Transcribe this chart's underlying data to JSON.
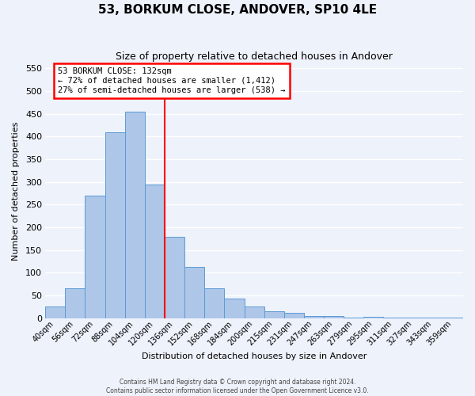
{
  "title": "53, BORKUM CLOSE, ANDOVER, SP10 4LE",
  "subtitle": "Size of property relative to detached houses in Andover",
  "xlabel": "Distribution of detached houses by size in Andover",
  "ylabel": "Number of detached properties",
  "bar_labels": [
    "40sqm",
    "56sqm",
    "72sqm",
    "88sqm",
    "104sqm",
    "120sqm",
    "136sqm",
    "152sqm",
    "168sqm",
    "184sqm",
    "200sqm",
    "215sqm",
    "231sqm",
    "247sqm",
    "263sqm",
    "279sqm",
    "295sqm",
    "311sqm",
    "327sqm",
    "343sqm",
    "359sqm"
  ],
  "bar_values": [
    25,
    65,
    270,
    410,
    455,
    295,
    180,
    113,
    65,
    43,
    26,
    15,
    11,
    4,
    5,
    2,
    3,
    1,
    1,
    1,
    1
  ],
  "bar_color": "#aec6e8",
  "bar_edge_color": "#5b9bd5",
  "vline_x": 6,
  "vline_color": "red",
  "annotation_title": "53 BORKUM CLOSE: 132sqm",
  "annotation_line1": "← 72% of detached houses are smaller (1,412)",
  "annotation_line2": "27% of semi-detached houses are larger (538) →",
  "annotation_box_edgecolor": "red",
  "ylim": [
    0,
    560
  ],
  "yticks": [
    0,
    50,
    100,
    150,
    200,
    250,
    300,
    350,
    400,
    450,
    500,
    550
  ],
  "footer1": "Contains HM Land Registry data © Crown copyright and database right 2024.",
  "footer2": "Contains public sector information licensed under the Open Government Licence v3.0.",
  "bg_color": "#eef2fb",
  "grid_color": "#ffffff"
}
